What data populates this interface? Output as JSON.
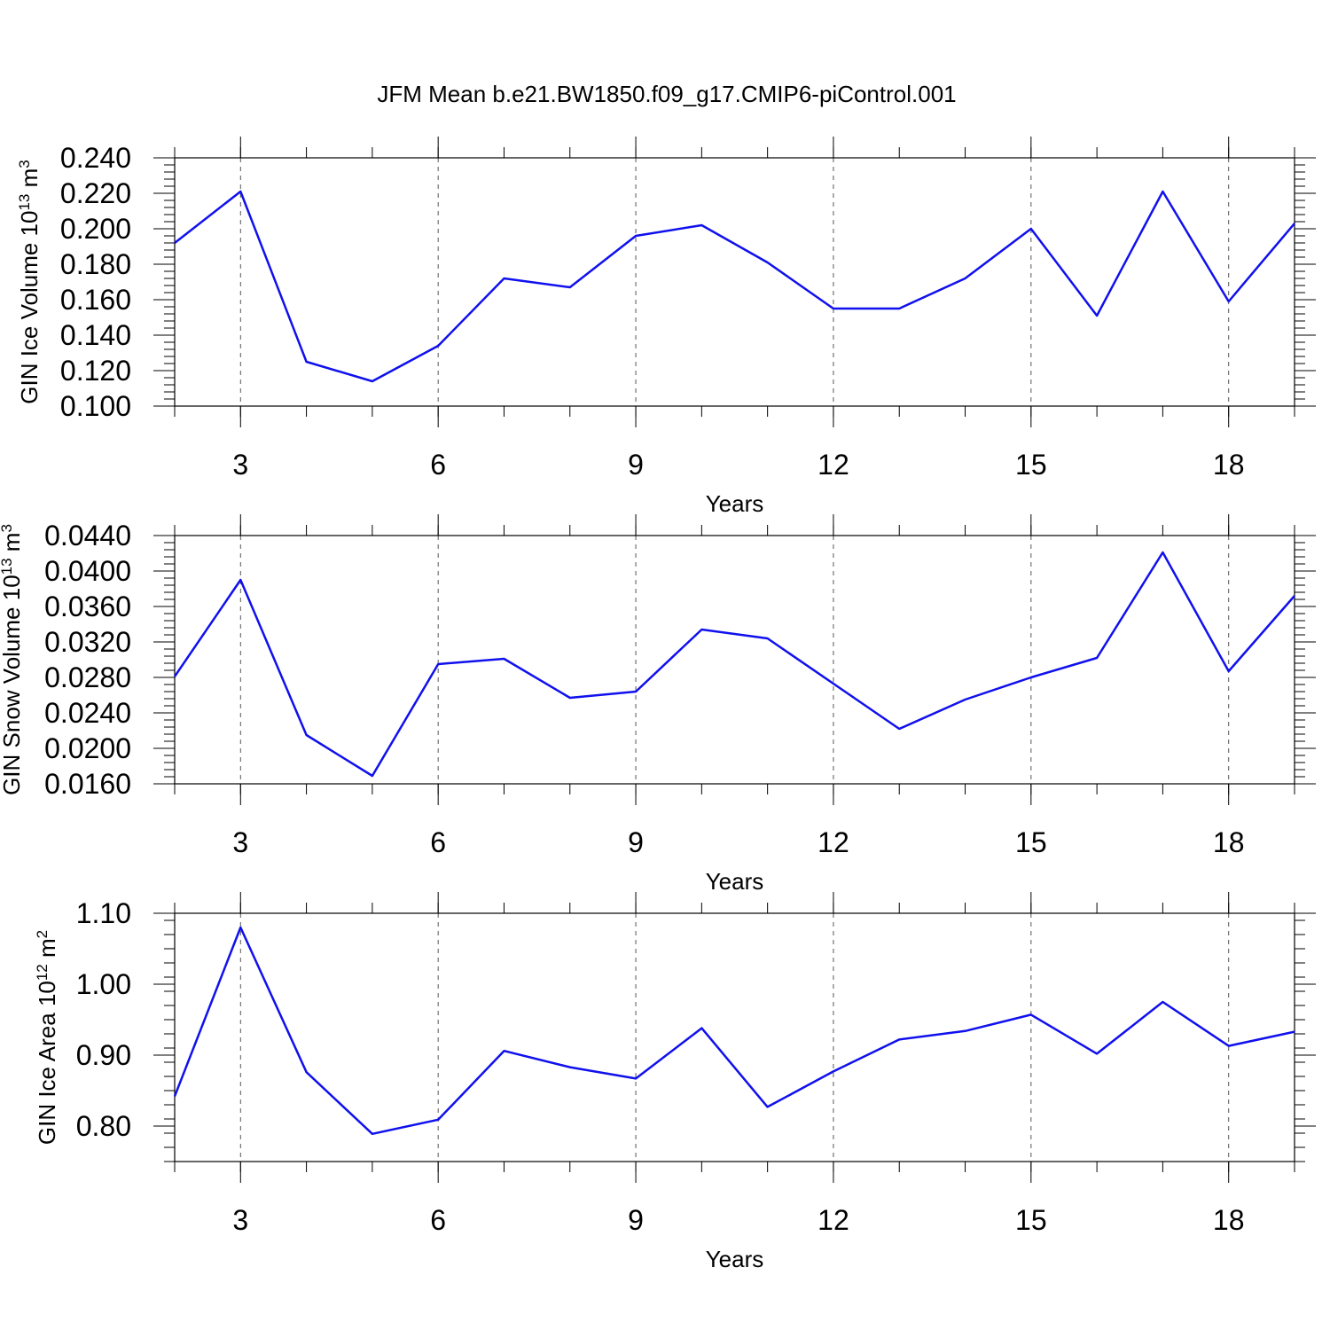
{
  "chart_data": {
    "title": "JFM Mean b.e21.BW1850.f09_g17.CMIP6-piControl.001",
    "colors": {
      "line": "#1010ee",
      "axis": "#000000",
      "grid": "#555555"
    },
    "panels": [
      {
        "type": "line",
        "ylabel": "GIN Ice Volume 10",
        "ylabel_exp": "13",
        "ylabel_unit": "m",
        "ylabel_unit_exp": "3",
        "xlabel": "Years",
        "xlim": [
          2,
          19
        ],
        "ylim": [
          0.1,
          0.24
        ],
        "yticks": [
          "0.100",
          "0.120",
          "0.140",
          "0.160",
          "0.180",
          "0.200",
          "0.220",
          "0.240"
        ],
        "xticks": [
          "3",
          "6",
          "9",
          "12",
          "15",
          "18"
        ],
        "grid": "vertical dashed",
        "series": [
          {
            "x": [
              2,
              3,
              4,
              5,
              6,
              7,
              8,
              9,
              10,
              11,
              12,
              13,
              14,
              15,
              16,
              17,
              18,
              19
            ],
            "values": [
              0.192,
              0.221,
              0.125,
              0.114,
              0.134,
              0.172,
              0.167,
              0.196,
              0.202,
              0.181,
              0.155,
              0.155,
              0.172,
              0.2,
              0.151,
              0.221,
              0.159,
              0.203
            ]
          }
        ]
      },
      {
        "type": "line",
        "ylabel": "GIN Snow Volume 10",
        "ylabel_exp": "13",
        "ylabel_unit": "m",
        "ylabel_unit_exp": "3",
        "xlabel": "Years",
        "xlim": [
          2,
          19
        ],
        "ylim": [
          0.016,
          0.044
        ],
        "yticks": [
          "0.0160",
          "0.0200",
          "0.0240",
          "0.0280",
          "0.0320",
          "0.0360",
          "0.0400",
          "0.0440"
        ],
        "xticks": [
          "3",
          "6",
          "9",
          "12",
          "15",
          "18"
        ],
        "grid": "vertical dashed",
        "series": [
          {
            "x": [
              2,
              3,
              4,
              5,
              6,
              7,
              8,
              9,
              10,
              11,
              12,
              13,
              14,
              15,
              16,
              17,
              18,
              19
            ],
            "values": [
              0.0281,
              0.039,
              0.0215,
              0.0169,
              0.0295,
              0.0301,
              0.0257,
              0.0264,
              0.0334,
              0.0324,
              0.0273,
              0.0222,
              0.0255,
              0.028,
              0.0302,
              0.0421,
              0.0287,
              0.0372
            ]
          }
        ]
      },
      {
        "type": "line",
        "ylabel": "GIN Ice Area 10",
        "ylabel_exp": "12",
        "ylabel_unit": "m",
        "ylabel_unit_exp": "2",
        "xlabel": "Years",
        "xlim": [
          2,
          19
        ],
        "ylim": [
          0.75,
          1.1
        ],
        "yticks": [
          "0.80",
          "0.90",
          "1.00",
          "1.10"
        ],
        "xticks": [
          "3",
          "6",
          "9",
          "12",
          "15",
          "18"
        ],
        "grid": "vertical dashed",
        "series": [
          {
            "x": [
              2,
              3,
              4,
              5,
              6,
              7,
              8,
              9,
              10,
              11,
              12,
              13,
              14,
              15,
              16,
              17,
              18,
              19
            ],
            "values": [
              0.842,
              1.08,
              0.876,
              0.789,
              0.809,
              0.906,
              0.883,
              0.867,
              0.938,
              0.827,
              0.877,
              0.922,
              0.934,
              0.957,
              0.902,
              0.975,
              0.913,
              0.933
            ]
          }
        ]
      }
    ]
  }
}
